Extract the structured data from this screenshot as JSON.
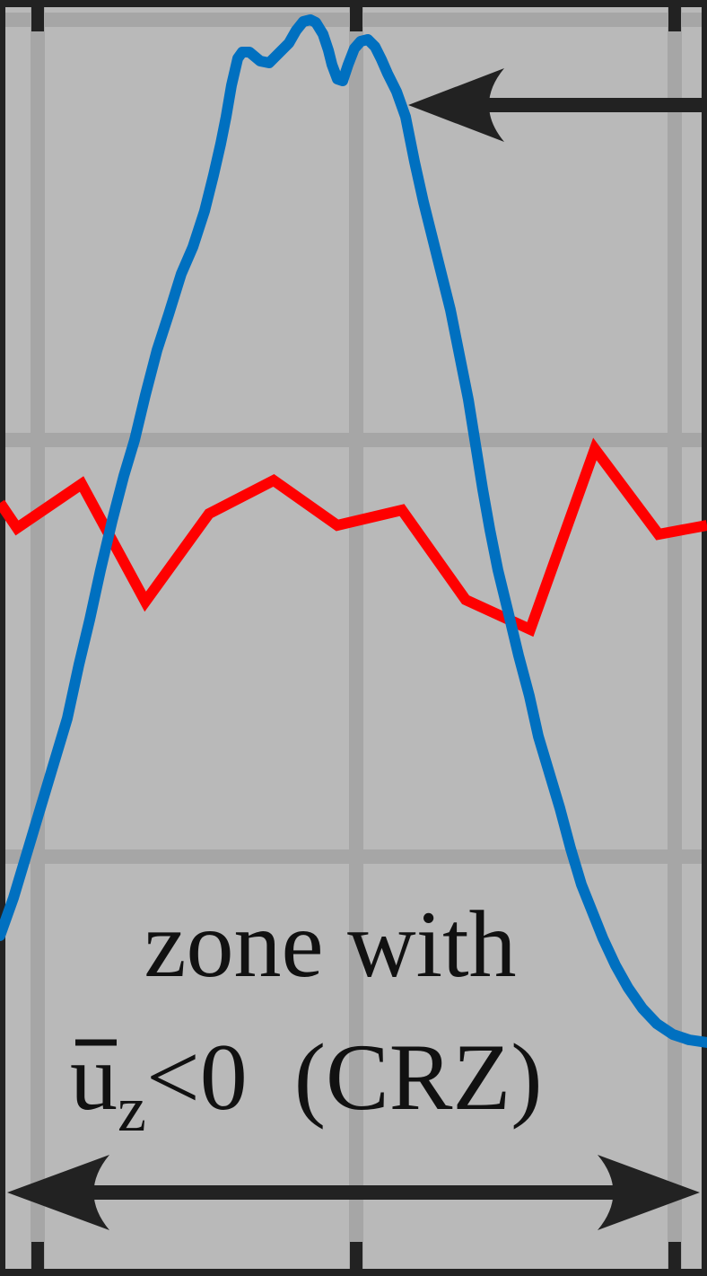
{
  "chart_data": {
    "type": "line",
    "title": "",
    "xlabel": "",
    "ylabel": "",
    "grid": true,
    "colors": {
      "background": "#b9b9b9",
      "grid": "#a6a6a6",
      "axis": "#222222",
      "arrow": "#222222"
    },
    "series": [
      {
        "color": "#0070c0",
        "points": [
          [
            0,
            1042
          ],
          [
            15,
            1000
          ],
          [
            30,
            950
          ],
          [
            45,
            900
          ],
          [
            60,
            850
          ],
          [
            75,
            800
          ],
          [
            88,
            740
          ],
          [
            100,
            690
          ],
          [
            112,
            635
          ],
          [
            125,
            580
          ],
          [
            138,
            530
          ],
          [
            150,
            490
          ],
          [
            162,
            440
          ],
          [
            175,
            390
          ],
          [
            188,
            350
          ],
          [
            202,
            305
          ],
          [
            215,
            275
          ],
          [
            228,
            235
          ],
          [
            238,
            195
          ],
          [
            246,
            160
          ],
          [
            252,
            130
          ],
          [
            258,
            95
          ],
          [
            265,
            65
          ],
          [
            270,
            58
          ],
          [
            278,
            58
          ],
          [
            290,
            68
          ],
          [
            300,
            70
          ],
          [
            312,
            58
          ],
          [
            322,
            48
          ],
          [
            330,
            34
          ],
          [
            338,
            24
          ],
          [
            346,
            22
          ],
          [
            352,
            25
          ],
          [
            360,
            38
          ],
          [
            366,
            56
          ],
          [
            370,
            72
          ],
          [
            376,
            88
          ],
          [
            382,
            90
          ],
          [
            388,
            72
          ],
          [
            395,
            54
          ],
          [
            402,
            46
          ],
          [
            410,
            44
          ],
          [
            418,
            52
          ],
          [
            425,
            66
          ],
          [
            432,
            82
          ],
          [
            442,
            102
          ],
          [
            452,
            130
          ],
          [
            462,
            180
          ],
          [
            472,
            225
          ],
          [
            482,
            265
          ],
          [
            492,
            305
          ],
          [
            502,
            345
          ],
          [
            512,
            395
          ],
          [
            522,
            445
          ],
          [
            530,
            495
          ],
          [
            538,
            545
          ],
          [
            546,
            590
          ],
          [
            555,
            635
          ],
          [
            566,
            680
          ],
          [
            578,
            730
          ],
          [
            590,
            775
          ],
          [
            600,
            820
          ],
          [
            612,
            860
          ],
          [
            624,
            900
          ],
          [
            636,
            945
          ],
          [
            648,
            985
          ],
          [
            660,
            1015
          ],
          [
            672,
            1045
          ],
          [
            686,
            1075
          ],
          [
            700,
            1100
          ],
          [
            716,
            1123
          ],
          [
            732,
            1140
          ],
          [
            750,
            1152
          ],
          [
            768,
            1158
          ],
          [
            788,
            1161
          ]
        ]
      },
      {
        "color": "#ff0000",
        "points": [
          [
            0,
            560
          ],
          [
            19,
            588
          ],
          [
            91,
            539
          ],
          [
            162,
            670
          ],
          [
            233,
            572
          ],
          [
            305,
            535
          ],
          [
            376,
            585
          ],
          [
            448,
            568
          ],
          [
            519,
            668
          ],
          [
            591,
            701
          ],
          [
            663,
            500
          ],
          [
            734,
            595
          ],
          [
            788,
            585
          ]
        ]
      }
    ],
    "annotations": [
      {
        "text": "zone with",
        "type": "label"
      },
      {
        "text": "(CRZ)",
        "type": "label"
      },
      {
        "type": "arrow",
        "direction": "left",
        "points_to": "blue-curve-peak"
      },
      {
        "type": "double-arrow",
        "direction": "horizontal"
      }
    ],
    "math_label": {
      "symbol": "u",
      "subscript": "z",
      "relation": "<0"
    }
  }
}
